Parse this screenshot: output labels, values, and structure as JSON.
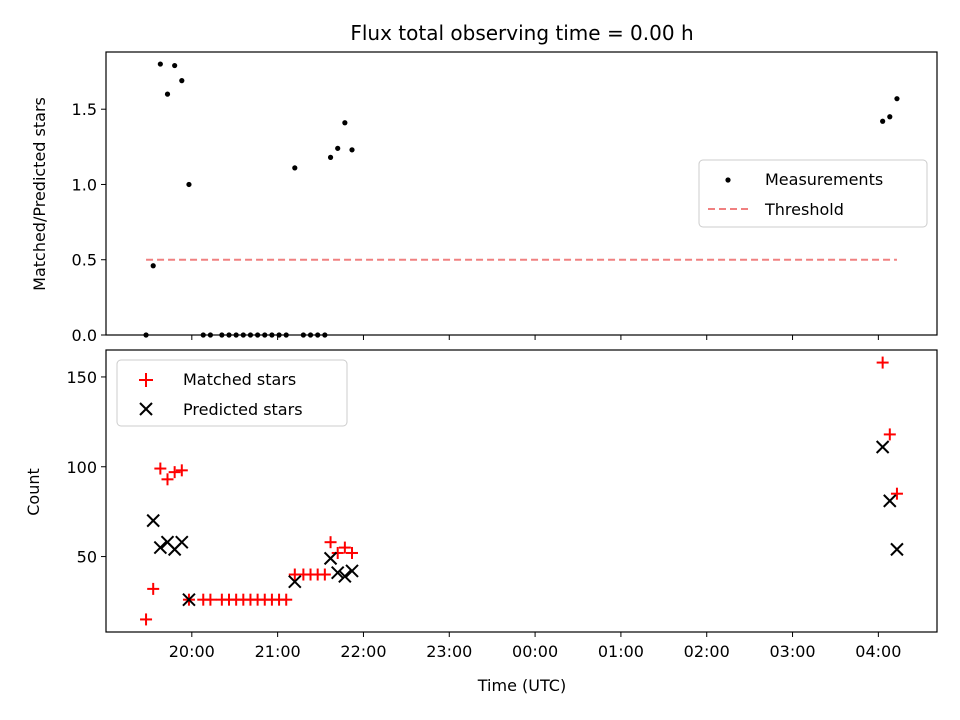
{
  "title": "Flux total observing time = 0.00 h",
  "chart_data": [
    {
      "type": "scatter",
      "panel": "top",
      "title": "Flux total observing time = 0.00 h",
      "xlabel": "",
      "ylabel": "Matched/Predicted stars",
      "xlim": [
        "19:00",
        "04:41"
      ],
      "ylim": [
        0,
        1.88
      ],
      "yticks": [
        0.0,
        0.5,
        1.0,
        1.5
      ],
      "ytick_labels": [
        "0.0",
        "0.5",
        "1.0",
        "1.5"
      ],
      "legend_position": "center-right",
      "grid": false,
      "series": [
        {
          "name": "Measurements",
          "kind": "scatter",
          "marker": "dot",
          "color": "#000000",
          "points": [
            {
              "x": "19:28",
              "y": 0.0
            },
            {
              "x": "19:33",
              "y": 0.46
            },
            {
              "x": "19:38",
              "y": 1.8
            },
            {
              "x": "19:43",
              "y": 1.6
            },
            {
              "x": "19:48",
              "y": 1.79
            },
            {
              "x": "19:53",
              "y": 1.69
            },
            {
              "x": "19:58",
              "y": 1.0
            },
            {
              "x": "20:08",
              "y": 0.0
            },
            {
              "x": "20:13",
              "y": 0.0
            },
            {
              "x": "20:21",
              "y": 0.0
            },
            {
              "x": "20:26",
              "y": 0.0
            },
            {
              "x": "20:31",
              "y": 0.0
            },
            {
              "x": "20:36",
              "y": 0.0
            },
            {
              "x": "20:41",
              "y": 0.0
            },
            {
              "x": "20:46",
              "y": 0.0
            },
            {
              "x": "20:51",
              "y": 0.0
            },
            {
              "x": "20:56",
              "y": 0.0
            },
            {
              "x": "21:01",
              "y": 0.0
            },
            {
              "x": "21:06",
              "y": 0.0
            },
            {
              "x": "21:12",
              "y": 1.11
            },
            {
              "x": "21:18",
              "y": 0.0
            },
            {
              "x": "21:23",
              "y": 0.0
            },
            {
              "x": "21:28",
              "y": 0.0
            },
            {
              "x": "21:33",
              "y": 0.0
            },
            {
              "x": "21:37",
              "y": 1.18
            },
            {
              "x": "21:42",
              "y": 1.24
            },
            {
              "x": "21:47",
              "y": 1.41
            },
            {
              "x": "21:52",
              "y": 1.23
            },
            {
              "x": "04:03",
              "y": 1.42
            },
            {
              "x": "04:08",
              "y": 1.45
            },
            {
              "x": "04:13",
              "y": 1.57
            }
          ]
        },
        {
          "name": "Threshold",
          "kind": "line",
          "style": "dashed",
          "color": "#f08080",
          "points": [
            {
              "x": "19:28",
              "y": 0.5
            },
            {
              "x": "04:13",
              "y": 0.5
            }
          ]
        }
      ]
    },
    {
      "type": "scatter",
      "panel": "bottom",
      "title": "",
      "xlabel": "Time (UTC)",
      "ylabel": "Count",
      "xlim": [
        "19:00",
        "04:41"
      ],
      "ylim": [
        8,
        165
      ],
      "xticks": [
        "20:00",
        "21:00",
        "22:00",
        "23:00",
        "00:00",
        "01:00",
        "02:00",
        "03:00",
        "04:00"
      ],
      "yticks": [
        50,
        100,
        150
      ],
      "ytick_labels": [
        "50",
        "100",
        "150"
      ],
      "legend_position": "top-left",
      "grid": false,
      "series": [
        {
          "name": "Matched stars",
          "kind": "scatter",
          "marker": "plus",
          "color": "#ff0000",
          "points": [
            {
              "x": "19:28",
              "y": 15
            },
            {
              "x": "19:33",
              "y": 32
            },
            {
              "x": "19:38",
              "y": 99
            },
            {
              "x": "19:43",
              "y": 93
            },
            {
              "x": "19:48",
              "y": 97
            },
            {
              "x": "19:53",
              "y": 98
            },
            {
              "x": "19:58",
              "y": 26
            },
            {
              "x": "20:08",
              "y": 26
            },
            {
              "x": "20:13",
              "y": 26
            },
            {
              "x": "20:21",
              "y": 26
            },
            {
              "x": "20:26",
              "y": 26
            },
            {
              "x": "20:31",
              "y": 26
            },
            {
              "x": "20:36",
              "y": 26
            },
            {
              "x": "20:41",
              "y": 26
            },
            {
              "x": "20:46",
              "y": 26
            },
            {
              "x": "20:51",
              "y": 26
            },
            {
              "x": "20:56",
              "y": 26
            },
            {
              "x": "21:01",
              "y": 26
            },
            {
              "x": "21:06",
              "y": 26
            },
            {
              "x": "21:12",
              "y": 40
            },
            {
              "x": "21:18",
              "y": 40
            },
            {
              "x": "21:23",
              "y": 40
            },
            {
              "x": "21:28",
              "y": 40
            },
            {
              "x": "21:33",
              "y": 40
            },
            {
              "x": "21:37",
              "y": 58
            },
            {
              "x": "21:42",
              "y": 52
            },
            {
              "x": "21:47",
              "y": 55
            },
            {
              "x": "21:52",
              "y": 52
            },
            {
              "x": "04:03",
              "y": 158
            },
            {
              "x": "04:08",
              "y": 118
            },
            {
              "x": "04:13",
              "y": 85
            }
          ]
        },
        {
          "name": "Predicted stars",
          "kind": "scatter",
          "marker": "x",
          "color": "#000000",
          "points": [
            {
              "x": "19:33",
              "y": 70
            },
            {
              "x": "19:38",
              "y": 55
            },
            {
              "x": "19:43",
              "y": 58
            },
            {
              "x": "19:48",
              "y": 54
            },
            {
              "x": "19:53",
              "y": 58
            },
            {
              "x": "19:58",
              "y": 26
            },
            {
              "x": "21:12",
              "y": 36
            },
            {
              "x": "21:37",
              "y": 49
            },
            {
              "x": "21:42",
              "y": 41
            },
            {
              "x": "21:47",
              "y": 39
            },
            {
              "x": "21:52",
              "y": 42
            },
            {
              "x": "04:03",
              "y": 111
            },
            {
              "x": "04:08",
              "y": 81
            },
            {
              "x": "04:13",
              "y": 54
            }
          ]
        }
      ]
    }
  ]
}
